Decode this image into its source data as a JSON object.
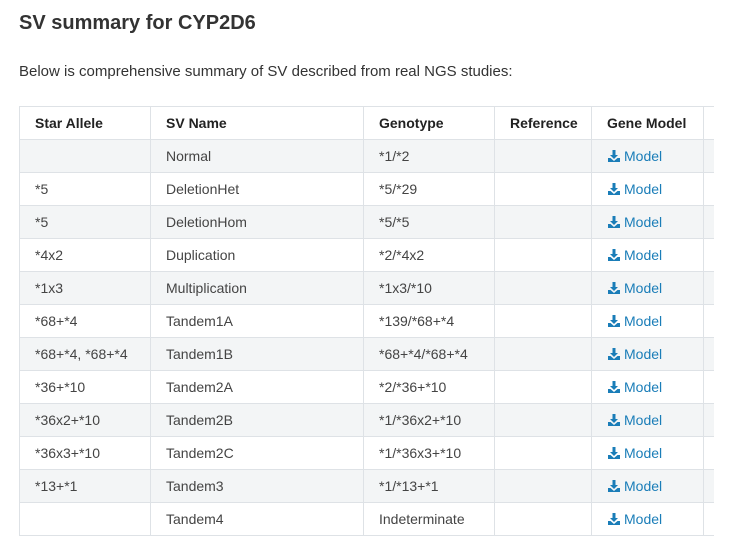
{
  "title": "SV summary for CYP2D6",
  "intro": "Below is comprehensive summary of SV described from real NGS studies:",
  "table": {
    "headers": [
      "Star Allele",
      "SV Name",
      "Genotype",
      "Reference",
      "Gene Model"
    ],
    "link_label": "Model",
    "link_icon": "download-icon",
    "link_color": "#1a7db8",
    "rows": [
      {
        "star": "",
        "sv": "Normal",
        "genotype": "*1/*2",
        "reference": ""
      },
      {
        "star": "*5",
        "sv": "DeletionHet",
        "genotype": "*5/*29",
        "reference": ""
      },
      {
        "star": "*5",
        "sv": "DeletionHom",
        "genotype": "*5/*5",
        "reference": ""
      },
      {
        "star": "*4x2",
        "sv": "Duplication",
        "genotype": "*2/*4x2",
        "reference": ""
      },
      {
        "star": "*1x3",
        "sv": "Multiplication",
        "genotype": "*1x3/*10",
        "reference": ""
      },
      {
        "star": "*68+*4",
        "sv": "Tandem1A",
        "genotype": "*139/*68+*4",
        "reference": ""
      },
      {
        "star": "*68+*4, *68+*4",
        "sv": "Tandem1B",
        "genotype": "*68+*4/*68+*4",
        "reference": ""
      },
      {
        "star": "*36+*10",
        "sv": "Tandem2A",
        "genotype": "*2/*36+*10",
        "reference": ""
      },
      {
        "star": "*36x2+*10",
        "sv": "Tandem2B",
        "genotype": "*1/*36x2+*10",
        "reference": ""
      },
      {
        "star": "*36x3+*10",
        "sv": "Tandem2C",
        "genotype": "*1/*36x3+*10",
        "reference": ""
      },
      {
        "star": "*13+*1",
        "sv": "Tandem3",
        "genotype": "*1/*13+*1",
        "reference": ""
      },
      {
        "star": "",
        "sv": "Tandem4",
        "genotype": "Indeterminate",
        "reference": ""
      }
    ]
  }
}
